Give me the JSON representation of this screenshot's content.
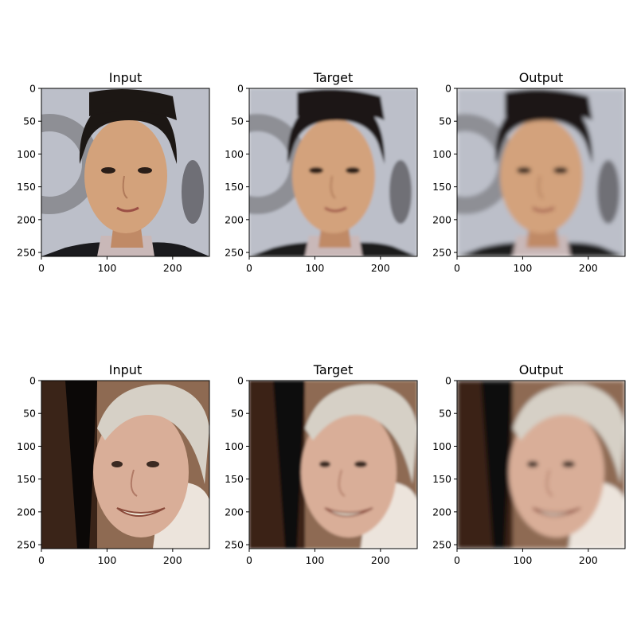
{
  "figure": {
    "panels": [
      {
        "title": "Input",
        "subject": "portrait-dark-hair-smiling",
        "variant": "input"
      },
      {
        "title": "Target",
        "subject": "portrait-dark-hair-smiling",
        "variant": "target"
      },
      {
        "title": "Output",
        "subject": "portrait-dark-hair-smiling",
        "variant": "output"
      },
      {
        "title": "Input",
        "subject": "portrait-white-hair-smiling",
        "variant": "input"
      },
      {
        "title": "Target",
        "subject": "portrait-white-hair-smiling",
        "variant": "target"
      },
      {
        "title": "Output",
        "subject": "portrait-white-hair-smiling",
        "variant": "output"
      }
    ],
    "axes": {
      "xticks": [
        "0",
        "100",
        "200"
      ],
      "xtick_values": [
        0,
        100,
        200
      ],
      "yticks": [
        "0",
        "50",
        "100",
        "150",
        "200",
        "250"
      ],
      "ytick_values": [
        0,
        50,
        100,
        150,
        200,
        250
      ],
      "range": [
        0,
        256
      ]
    },
    "colors": {
      "bg_light": "#b9bcc6",
      "logo_gray": "#8b8c92",
      "skin": "#d2a27a",
      "hair_dark": "#1b1714",
      "hair_white": "#d8d2c8",
      "skin_old": "#d9ae98",
      "bg_dark": "#2a1d16"
    }
  }
}
